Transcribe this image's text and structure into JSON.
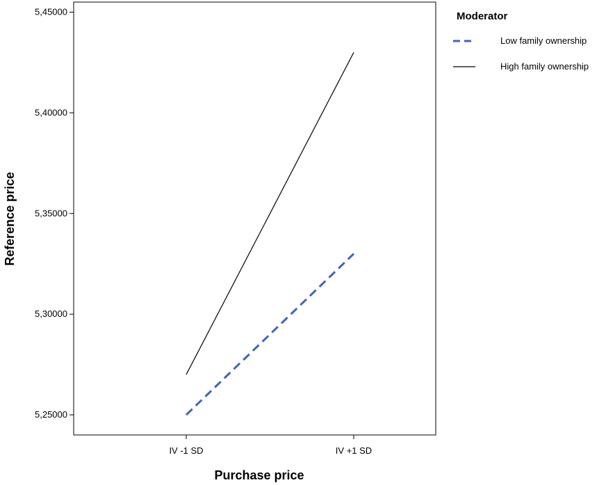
{
  "chart_data": {
    "type": "line",
    "xlabel": "Purchase price",
    "ylabel": "Reference price",
    "categories": [
      "IV -1 SD",
      "IV +1 SD"
    ],
    "ylim": [
      5.24,
      5.455
    ],
    "yticks": [
      "5,25000",
      "5,30000",
      "5,35000",
      "5,40000",
      "5,45000"
    ],
    "ytick_values": [
      5.25,
      5.3,
      5.35,
      5.4,
      5.45
    ],
    "grid": false,
    "legend": {
      "title": "Moderator",
      "placement": "right"
    },
    "series": [
      {
        "name": "Low family ownership",
        "values": [
          5.25,
          5.33
        ],
        "color": "#4062c0",
        "style": "dashed"
      },
      {
        "name": "High family ownership",
        "values": [
          5.27,
          5.43
        ],
        "color": "#000000",
        "style": "solid"
      }
    ]
  }
}
